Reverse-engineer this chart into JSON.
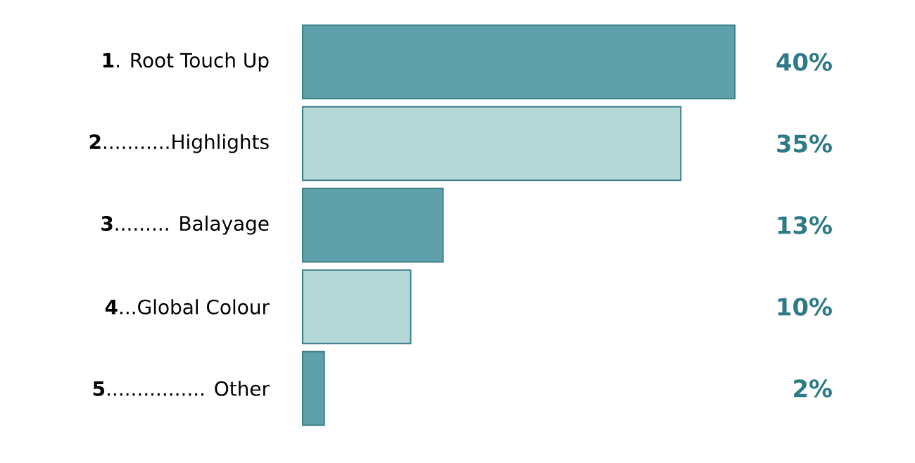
{
  "chart_data": {
    "type": "bar",
    "orientation": "horizontal",
    "categories": [
      "**1**. Root Touch Up",
      "**2**...........Highlights",
      "**3**......... Balayage",
      "**4**...Global Colour",
      "**5**................ Other"
    ],
    "values": [
      40,
      35,
      13,
      10,
      2
    ],
    "colors": [
      "#5fa0ab",
      "#b4d7d8",
      "#5fa0ab",
      "#b4d7d8",
      "#5fa0ab"
    ],
    "value_labels": [
      "40%",
      "35%",
      "13%",
      "10%",
      "2%"
    ]
  }
}
